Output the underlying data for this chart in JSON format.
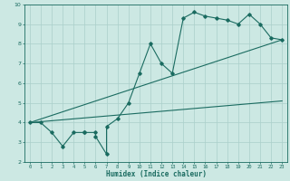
{
  "xlabel": "Humidex (Indice chaleur)",
  "ylabel": "",
  "bg_color": "#cce8e3",
  "line_color": "#1a6b60",
  "grid_color": "#aacfca",
  "xlim": [
    -0.5,
    23.5
  ],
  "ylim": [
    2,
    10
  ],
  "yticks": [
    2,
    3,
    4,
    5,
    6,
    7,
    8,
    9,
    10
  ],
  "xticks": [
    0,
    1,
    2,
    3,
    4,
    5,
    6,
    7,
    8,
    9,
    10,
    11,
    12,
    13,
    14,
    15,
    16,
    17,
    18,
    19,
    20,
    21,
    22,
    23
  ],
  "zigzag_x": [
    0,
    1,
    2,
    3,
    4,
    5,
    5,
    6,
    6,
    7,
    7,
    8,
    9,
    10,
    11,
    12,
    13,
    14,
    15,
    16,
    17,
    18,
    19,
    20,
    21,
    22,
    23
  ],
  "zigzag_y": [
    4.0,
    4.0,
    3.5,
    2.8,
    3.5,
    3.5,
    3.5,
    3.5,
    3.3,
    2.4,
    3.8,
    4.2,
    5.0,
    6.5,
    8.0,
    7.0,
    6.5,
    9.3,
    9.6,
    9.4,
    9.3,
    9.2,
    9.0,
    9.5,
    9.0,
    8.3,
    8.2
  ],
  "line1_x": [
    0,
    23
  ],
  "line1_y": [
    4.0,
    8.2
  ],
  "line2_x": [
    0,
    23
  ],
  "line2_y": [
    4.0,
    5.1
  ],
  "marker_style": "D",
  "marker_size": 1.8,
  "line_width": 0.8
}
